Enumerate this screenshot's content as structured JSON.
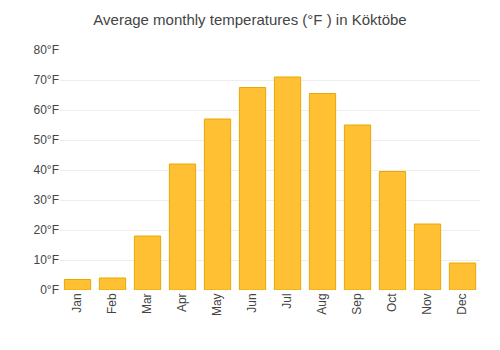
{
  "chart_data": {
    "type": "bar",
    "title": "Average monthly temperatures (°F ) in Köktöbe",
    "categories": [
      "Jan",
      "Feb",
      "Mar",
      "Apr",
      "May",
      "Jun",
      "Jul",
      "Aug",
      "Sep",
      "Oct",
      "Nov",
      "Dec"
    ],
    "values": [
      3.5,
      4.0,
      18.0,
      42.0,
      57.0,
      67.5,
      71.0,
      65.5,
      55.0,
      39.5,
      22.0,
      9.0
    ],
    "color": "#FFC133",
    "ylim": [
      0,
      80
    ],
    "yticks": [
      {
        "value": 0,
        "label": "0°F"
      },
      {
        "value": 10,
        "label": "10°F"
      },
      {
        "value": 20,
        "label": "20°F"
      },
      {
        "value": 30,
        "label": "30°F"
      },
      {
        "value": 40,
        "label": "40°F"
      },
      {
        "value": 50,
        "label": "50°F"
      },
      {
        "value": 60,
        "label": "60°F"
      },
      {
        "value": 70,
        "label": "70°F"
      },
      {
        "value": 80,
        "label": "80°F"
      }
    ],
    "grid": true
  }
}
